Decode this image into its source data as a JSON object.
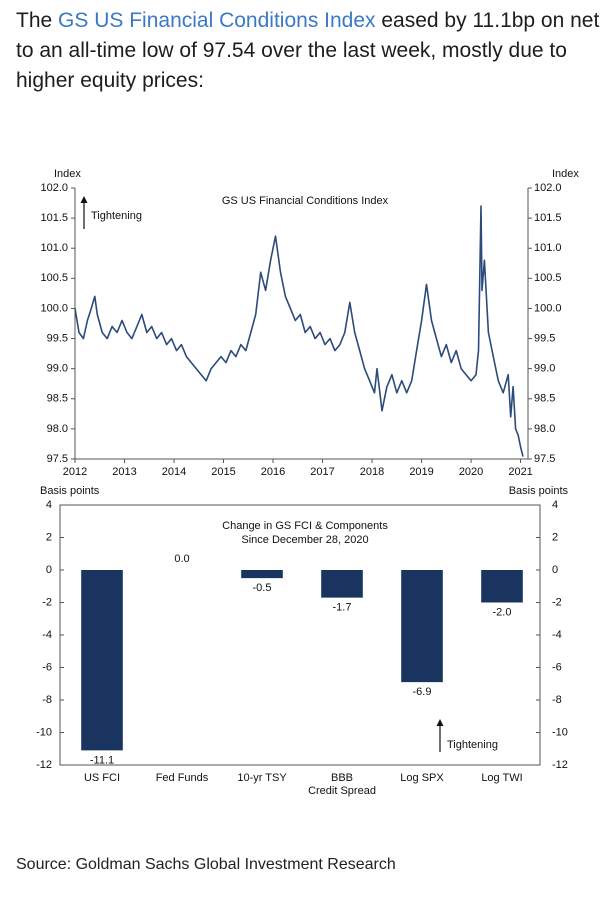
{
  "header": {
    "prefix": "The ",
    "link": "GS US Financial Conditions Index",
    "suffix": " eased by 11.1bp on net to an all-time low of 97.54 over the last week, mostly due to higher equity prices:"
  },
  "source": "Source: Goldman Sachs Global Investment Research",
  "chart_data": [
    {
      "type": "line",
      "title": "GS US Financial Conditions Index",
      "ylabel": "Index",
      "annotation": "Tightening",
      "color": "#2c4a7c",
      "x": [
        2012.0,
        2012.08,
        2012.17,
        2012.25,
        2012.33,
        2012.4,
        2012.45,
        2012.55,
        2012.65,
        2012.75,
        2012.85,
        2012.95,
        2013.05,
        2013.15,
        2013.25,
        2013.35,
        2013.45,
        2013.55,
        2013.65,
        2013.75,
        2013.85,
        2013.95,
        2014.05,
        2014.15,
        2014.25,
        2014.35,
        2014.45,
        2014.55,
        2014.65,
        2014.75,
        2014.85,
        2014.95,
        2015.05,
        2015.15,
        2015.25,
        2015.35,
        2015.45,
        2015.55,
        2015.65,
        2015.75,
        2015.85,
        2015.95,
        2016.05,
        2016.15,
        2016.25,
        2016.35,
        2016.45,
        2016.55,
        2016.65,
        2016.75,
        2016.85,
        2016.95,
        2017.05,
        2017.15,
        2017.25,
        2017.35,
        2017.45,
        2017.55,
        2017.65,
        2017.75,
        2017.85,
        2017.95,
        2018.05,
        2018.1,
        2018.2,
        2018.3,
        2018.4,
        2018.5,
        2018.6,
        2018.7,
        2018.8,
        2018.9,
        2019.0,
        2019.1,
        2019.2,
        2019.3,
        2019.4,
        2019.5,
        2019.6,
        2019.7,
        2019.8,
        2019.9,
        2020.0,
        2020.1,
        2020.15,
        2020.2,
        2020.22,
        2020.27,
        2020.35,
        2020.45,
        2020.55,
        2020.65,
        2020.75,
        2020.8,
        2020.85,
        2020.9,
        2020.95,
        2021.0,
        2021.05
      ],
      "values": [
        100.0,
        99.6,
        99.5,
        99.8,
        100.0,
        100.2,
        99.9,
        99.6,
        99.5,
        99.7,
        99.6,
        99.8,
        99.6,
        99.5,
        99.7,
        99.9,
        99.6,
        99.7,
        99.5,
        99.6,
        99.4,
        99.5,
        99.3,
        99.4,
        99.2,
        99.1,
        99.0,
        98.9,
        98.8,
        99.0,
        99.1,
        99.2,
        99.1,
        99.3,
        99.2,
        99.4,
        99.3,
        99.6,
        99.9,
        100.6,
        100.3,
        100.8,
        101.2,
        100.6,
        100.2,
        100.0,
        99.8,
        99.9,
        99.6,
        99.7,
        99.5,
        99.6,
        99.4,
        99.5,
        99.3,
        99.4,
        99.6,
        100.1,
        99.6,
        99.3,
        99.0,
        98.8,
        98.6,
        99.0,
        98.3,
        98.7,
        98.9,
        98.6,
        98.8,
        98.6,
        98.8,
        99.3,
        99.8,
        100.4,
        99.8,
        99.5,
        99.2,
        99.4,
        99.1,
        99.3,
        99.0,
        98.9,
        98.8,
        98.9,
        99.3,
        101.7,
        100.3,
        100.8,
        99.6,
        99.2,
        98.8,
        98.6,
        98.9,
        98.2,
        98.7,
        98.0,
        97.9,
        97.7,
        97.54
      ],
      "xlim": [
        2012,
        2021.15
      ],
      "xticks": [
        2012,
        2013,
        2014,
        2015,
        2016,
        2017,
        2018,
        2019,
        2020,
        2021
      ],
      "ylim": [
        97.5,
        102
      ],
      "yticks": [
        {
          "value": 97.5,
          "label": "97.5"
        },
        {
          "value": 98,
          "label": "98.0"
        },
        {
          "value": 98.5,
          "label": "98.5"
        },
        {
          "value": 99,
          "label": "99.0"
        },
        {
          "value": 99.5,
          "label": "99.5"
        },
        {
          "value": 100,
          "label": "100.0"
        },
        {
          "value": 100.5,
          "label": "100.5"
        },
        {
          "value": 101,
          "label": "101.0"
        },
        {
          "value": 101.5,
          "label": "101.5"
        },
        {
          "value": 102,
          "label": "102.0"
        }
      ]
    },
    {
      "type": "bar",
      "title": "Change in GS FCI & Components",
      "subtitle": "Since December 28, 2020",
      "ylabel": "Basis points",
      "annotation": "Tightening",
      "color": "#1a3460",
      "categories": [
        "US FCI",
        "Fed Funds",
        "10-yr TSY",
        "BBB\nCredit Spread",
        "Log SPX",
        "Log TWI"
      ],
      "values": [
        -11.1,
        0,
        -0.5,
        -1.7,
        -6.9,
        -2.0
      ],
      "value_labels": [
        "-11.1",
        "0.0",
        "-0.5",
        "-1.7",
        "-6.9",
        "-2.0"
      ],
      "ylim": [
        -12,
        4
      ],
      "yticks": [
        -12,
        -10,
        -8,
        -6,
        -4,
        -2,
        0,
        2,
        4
      ]
    }
  ]
}
